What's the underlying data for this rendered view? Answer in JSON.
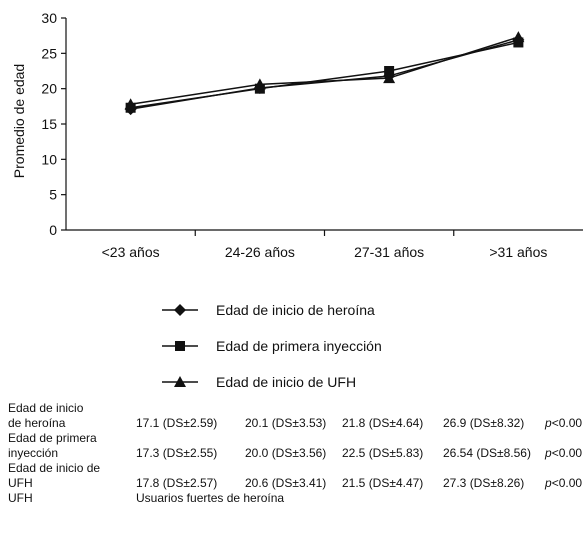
{
  "chart_data": {
    "type": "line",
    "ylabel": "Promedio de edad",
    "xlabel": "",
    "ylim": [
      0,
      30
    ],
    "yticks": [
      "0",
      "5",
      "10",
      "15",
      "20",
      "25",
      "30"
    ],
    "categories": [
      "<23 años",
      "24-26 años",
      "27-31 años",
      ">31 años"
    ],
    "series": [
      {
        "name": "Edad de inicio de heroína",
        "marker": "diamond",
        "values": [
          17.1,
          20.1,
          21.8,
          26.9
        ]
      },
      {
        "name": "Edad de primera inyección",
        "marker": "square",
        "values": [
          17.3,
          20.0,
          22.5,
          26.54
        ]
      },
      {
        "name": "Edad de inicio de UFH",
        "marker": "triangle",
        "values": [
          17.8,
          20.6,
          21.5,
          27.3
        ]
      }
    ],
    "line_color": "#111111",
    "grid": false,
    "legend_position": "below"
  },
  "table": {
    "rows": [
      {
        "label1": "Edad de inicio",
        "label2": "de heroína",
        "cells": [
          "17.1 (DS±2.59)",
          "20.1 (DS±3.53)",
          "21.8 (DS±4.64)",
          "26.9 (DS±8.32)"
        ],
        "p_symbol": "p",
        "p_value": "<0.00"
      },
      {
        "label1": "Edad de primera",
        "label2": "inyección",
        "cells": [
          "17.3 (DS±2.55)",
          "20.0 (DS±3.56)",
          "22.5 (DS±5.83)",
          "26.54 (DS±8.56)"
        ],
        "p_symbol": "p",
        "p_value": "<0.00"
      },
      {
        "label1": "Edad de inicio de",
        "label2": "UFH",
        "cells": [
          "17.8 (DS±2.57)",
          "20.6 (DS±3.41)",
          "21.5 (DS±4.47)",
          "27.3 (DS±8.26)"
        ],
        "p_symbol": "p",
        "p_value": "<0.00"
      }
    ],
    "footnote_abbr": "UFH",
    "footnote_text": "Usuarios fuertes de heroína"
  }
}
